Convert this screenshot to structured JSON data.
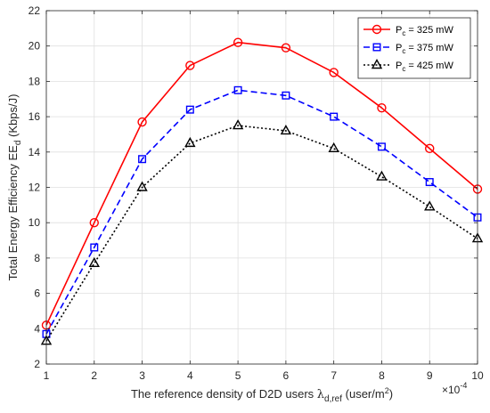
{
  "chart_data": {
    "type": "line",
    "xlabel": {
      "prefix": "The reference density of D2D users ",
      "symbol": "λ",
      "subscript": "d,ref",
      "unit_prefix": " (user/m",
      "unit_sup": "2",
      "unit_suffix": ")"
    },
    "ylabel": {
      "prefix": "Total Energy Efficiency EE",
      "subscript": "d",
      "suffix": " (Kbps/J)"
    },
    "x_multiplier": {
      "base": "×10",
      "exponent": "-4"
    },
    "x": [
      1,
      2,
      3,
      4,
      5,
      6,
      7,
      8,
      9,
      10
    ],
    "xlim": [
      1,
      10
    ],
    "ylim": [
      2,
      22
    ],
    "xticks": [
      "1",
      "2",
      "3",
      "4",
      "5",
      "6",
      "7",
      "8",
      "9",
      "10"
    ],
    "yticks": [
      "2",
      "4",
      "6",
      "8",
      "10",
      "12",
      "14",
      "16",
      "18",
      "20",
      "22"
    ],
    "grid": true,
    "legend_position": "top-right",
    "series": [
      {
        "name": "P_c = 325 mW",
        "label_main": "P",
        "label_sub": "c",
        "label_rest": " = 325 mW",
        "color": "#ff0000",
        "dash": "solid",
        "marker": "circle",
        "values": [
          4.2,
          10.0,
          15.7,
          18.9,
          20.2,
          19.9,
          18.5,
          16.5,
          14.2,
          11.9
        ]
      },
      {
        "name": "P_c = 375 mW",
        "label_main": "P",
        "label_sub": "c",
        "label_rest": " = 375 mW",
        "color": "#0000ff",
        "dash": "dashed",
        "marker": "square",
        "values": [
          3.7,
          8.6,
          13.6,
          16.4,
          17.5,
          17.2,
          16.0,
          14.3,
          12.3,
          10.3
        ]
      },
      {
        "name": "P_c = 425 mW",
        "label_main": "P",
        "label_sub": "c",
        "label_rest": " = 425 mW",
        "color": "#000000",
        "dash": "dotted",
        "marker": "triangle",
        "values": [
          3.3,
          7.7,
          12.0,
          14.5,
          15.5,
          15.2,
          14.2,
          12.6,
          10.9,
          9.1
        ]
      }
    ]
  }
}
